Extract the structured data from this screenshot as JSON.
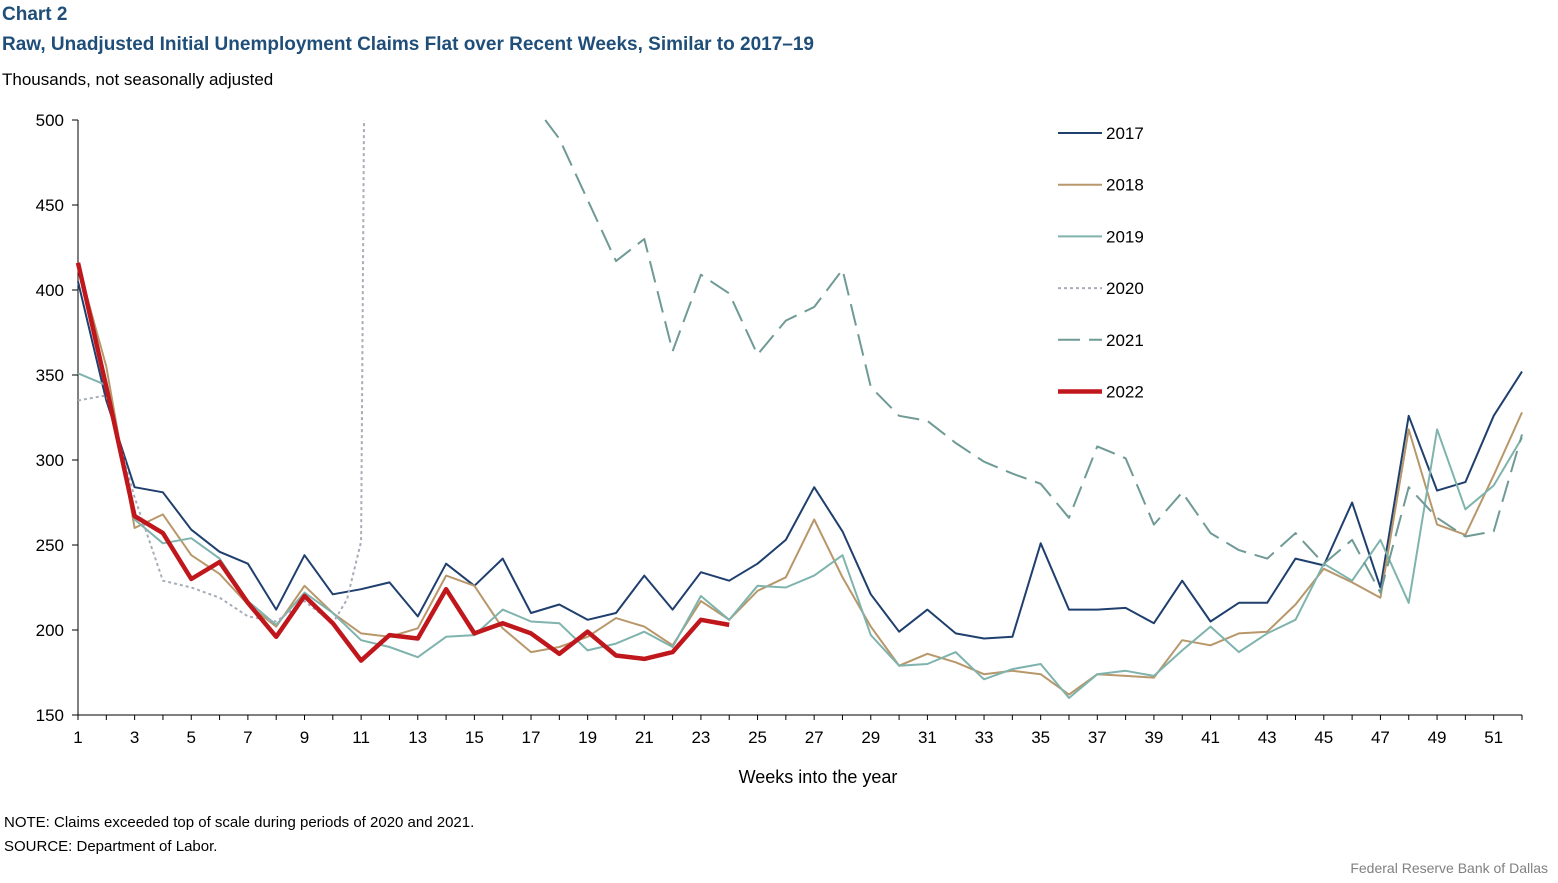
{
  "header": {
    "chart_label": "Chart 2",
    "title": "Raw, Unadjusted Initial Unemployment  Claims Flat over Recent Weeks, Similar to 2017–19",
    "subtitle": "Thousands,  not seasonally  adjusted"
  },
  "footer": {
    "note": "NOTE: Claims exceeded  top of scale during periods of 2020 and 2021.",
    "source": "SOURCE:  Department  of Labor.",
    "credit": "Federal Reserve  Bank of Dallas"
  },
  "chart_data": {
    "type": "line",
    "xlabel": "Weeks into the year",
    "ylabel": "",
    "xlim": [
      1,
      52
    ],
    "ylim": [
      150,
      500
    ],
    "yticks": [
      150,
      200,
      250,
      300,
      350,
      400,
      450,
      500
    ],
    "xticks": [
      1,
      3,
      5,
      7,
      9,
      11,
      13,
      15,
      17,
      19,
      21,
      23,
      25,
      27,
      29,
      31,
      33,
      35,
      37,
      39,
      41,
      43,
      45,
      47,
      49,
      51
    ],
    "legend_position": "top-right",
    "series": [
      {
        "name": "2017",
        "color": "#1f3f6e",
        "dash": "solid",
        "width": 2,
        "values": [
          [
            1,
            405
          ],
          [
            2,
            335
          ],
          [
            3,
            284
          ],
          [
            4,
            281
          ],
          [
            5,
            259
          ],
          [
            6,
            246
          ],
          [
            7,
            239
          ],
          [
            8,
            212
          ],
          [
            9,
            244
          ],
          [
            10,
            221
          ],
          [
            11,
            224
          ],
          [
            12,
            228
          ],
          [
            13,
            208
          ],
          [
            14,
            239
          ],
          [
            15,
            226
          ],
          [
            16,
            242
          ],
          [
            17,
            210
          ],
          [
            18,
            215
          ],
          [
            19,
            206
          ],
          [
            20,
            210
          ],
          [
            21,
            232
          ],
          [
            22,
            212
          ],
          [
            23,
            234
          ],
          [
            24,
            229
          ],
          [
            25,
            239
          ],
          [
            26,
            253
          ],
          [
            27,
            284
          ],
          [
            28,
            258
          ],
          [
            29,
            221
          ],
          [
            30,
            199
          ],
          [
            31,
            212
          ],
          [
            32,
            198
          ],
          [
            33,
            195
          ],
          [
            34,
            196
          ],
          [
            35,
            251
          ],
          [
            36,
            212
          ],
          [
            37,
            212
          ],
          [
            38,
            213
          ],
          [
            39,
            204
          ],
          [
            40,
            229
          ],
          [
            41,
            205
          ],
          [
            42,
            216
          ],
          [
            43,
            216
          ],
          [
            44,
            242
          ],
          [
            45,
            238
          ],
          [
            46,
            275
          ],
          [
            47,
            225
          ],
          [
            48,
            326
          ],
          [
            49,
            282
          ],
          [
            50,
            287
          ],
          [
            51,
            326
          ],
          [
            52,
            352
          ]
        ]
      },
      {
        "name": "2018",
        "color": "#b8976a",
        "dash": "solid",
        "width": 2,
        "values": [
          [
            1,
            415
          ],
          [
            2,
            355
          ],
          [
            3,
            260
          ],
          [
            4,
            268
          ],
          [
            5,
            244
          ],
          [
            6,
            233
          ],
          [
            7,
            215
          ],
          [
            8,
            202
          ],
          [
            9,
            226
          ],
          [
            10,
            210
          ],
          [
            11,
            198
          ],
          [
            12,
            196
          ],
          [
            13,
            201
          ],
          [
            14,
            232
          ],
          [
            15,
            226
          ],
          [
            16,
            201
          ],
          [
            17,
            187
          ],
          [
            18,
            190
          ],
          [
            19,
            196
          ],
          [
            20,
            207
          ],
          [
            21,
            202
          ],
          [
            22,
            191
          ],
          [
            23,
            217
          ],
          [
            24,
            206
          ],
          [
            25,
            223
          ],
          [
            26,
            231
          ],
          [
            27,
            265
          ],
          [
            28,
            231
          ],
          [
            29,
            202
          ],
          [
            30,
            179
          ],
          [
            31,
            186
          ],
          [
            32,
            181
          ],
          [
            33,
            174
          ],
          [
            34,
            176
          ],
          [
            35,
            174
          ],
          [
            36,
            162
          ],
          [
            37,
            174
          ],
          [
            38,
            173
          ],
          [
            39,
            172
          ],
          [
            40,
            194
          ],
          [
            41,
            191
          ],
          [
            42,
            198
          ],
          [
            43,
            199
          ],
          [
            44,
            215
          ],
          [
            45,
            236
          ],
          [
            46,
            228
          ],
          [
            47,
            219
          ],
          [
            48,
            318
          ],
          [
            49,
            262
          ],
          [
            50,
            256
          ],
          [
            51,
            291
          ],
          [
            52,
            328
          ]
        ]
      },
      {
        "name": "2019",
        "color": "#7fb3ad",
        "dash": "solid",
        "width": 2,
        "values": [
          [
            1,
            351
          ],
          [
            2,
            344
          ],
          [
            3,
            265
          ],
          [
            4,
            251
          ],
          [
            5,
            254
          ],
          [
            6,
            242
          ],
          [
            7,
            217
          ],
          [
            8,
            203
          ],
          [
            9,
            222
          ],
          [
            10,
            210
          ],
          [
            11,
            194
          ],
          [
            12,
            190
          ],
          [
            13,
            184
          ],
          [
            14,
            196
          ],
          [
            15,
            197
          ],
          [
            16,
            212
          ],
          [
            17,
            205
          ],
          [
            18,
            204
          ],
          [
            19,
            188
          ],
          [
            20,
            192
          ],
          [
            21,
            199
          ],
          [
            22,
            190
          ],
          [
            23,
            220
          ],
          [
            24,
            206
          ],
          [
            25,
            226
          ],
          [
            26,
            225
          ],
          [
            27,
            232
          ],
          [
            28,
            244
          ],
          [
            29,
            197
          ],
          [
            30,
            179
          ],
          [
            31,
            180
          ],
          [
            32,
            187
          ],
          [
            33,
            171
          ],
          [
            34,
            177
          ],
          [
            35,
            180
          ],
          [
            36,
            160
          ],
          [
            37,
            174
          ],
          [
            38,
            176
          ],
          [
            39,
            173
          ],
          [
            40,
            188
          ],
          [
            41,
            202
          ],
          [
            42,
            187
          ],
          [
            43,
            198
          ],
          [
            44,
            206
          ],
          [
            45,
            239
          ],
          [
            46,
            229
          ],
          [
            47,
            253
          ],
          [
            48,
            216
          ],
          [
            49,
            318
          ],
          [
            50,
            271
          ],
          [
            51,
            285
          ],
          [
            52,
            313
          ]
        ]
      },
      {
        "name": "2020",
        "color": "#a7adb8",
        "dash": "3,3",
        "width": 2,
        "values": [
          [
            1,
            335
          ],
          [
            2,
            338
          ],
          [
            3,
            278
          ],
          [
            4,
            229
          ],
          [
            5,
            225
          ],
          [
            6,
            219
          ],
          [
            7,
            208
          ],
          [
            8,
            205
          ],
          [
            9,
            217
          ],
          [
            10,
            204
          ],
          [
            10.5,
            218
          ],
          [
            11,
            252
          ],
          [
            11.1,
            500
          ]
        ]
      },
      {
        "name": "2021",
        "color": "#6f9a96",
        "dash": "22,9",
        "width": 2,
        "values": [
          [
            17.5,
            500
          ],
          [
            18,
            489
          ],
          [
            19,
            453
          ],
          [
            20,
            417
          ],
          [
            21,
            430
          ],
          [
            22,
            364
          ],
          [
            23,
            409
          ],
          [
            24,
            398
          ],
          [
            25,
            362
          ],
          [
            26,
            382
          ],
          [
            27,
            390
          ],
          [
            28,
            412
          ],
          [
            29,
            343
          ],
          [
            30,
            326
          ],
          [
            31,
            323
          ],
          [
            32,
            310
          ],
          [
            33,
            299
          ],
          [
            34,
            292
          ],
          [
            35,
            286
          ],
          [
            36,
            266
          ],
          [
            37,
            308
          ],
          [
            38,
            301
          ],
          [
            39,
            262
          ],
          [
            40,
            281
          ],
          [
            41,
            257
          ],
          [
            42,
            247
          ],
          [
            43,
            242
          ],
          [
            44,
            257
          ],
          [
            45,
            239
          ],
          [
            46,
            253
          ],
          [
            47,
            222
          ],
          [
            48,
            284
          ],
          [
            49,
            266
          ],
          [
            50,
            255
          ],
          [
            51,
            258
          ],
          [
            52,
            315
          ]
        ]
      },
      {
        "name": "2022",
        "color": "#c0171d",
        "dash": "solid",
        "width": 4.5,
        "values": [
          [
            1,
            416
          ],
          [
            2,
            343
          ],
          [
            3,
            267
          ],
          [
            4,
            257
          ],
          [
            5,
            230
          ],
          [
            6,
            240
          ],
          [
            7,
            216
          ],
          [
            8,
            196
          ],
          [
            9,
            220
          ],
          [
            10,
            204
          ],
          [
            11,
            182
          ],
          [
            12,
            197
          ],
          [
            13,
            195
          ],
          [
            14,
            224
          ],
          [
            15,
            198
          ],
          [
            16,
            204
          ],
          [
            17,
            198
          ],
          [
            18,
            186
          ],
          [
            19,
            199
          ],
          [
            20,
            185
          ],
          [
            21,
            183
          ],
          [
            22,
            187
          ],
          [
            23,
            206
          ],
          [
            24,
            203
          ]
        ]
      }
    ]
  }
}
